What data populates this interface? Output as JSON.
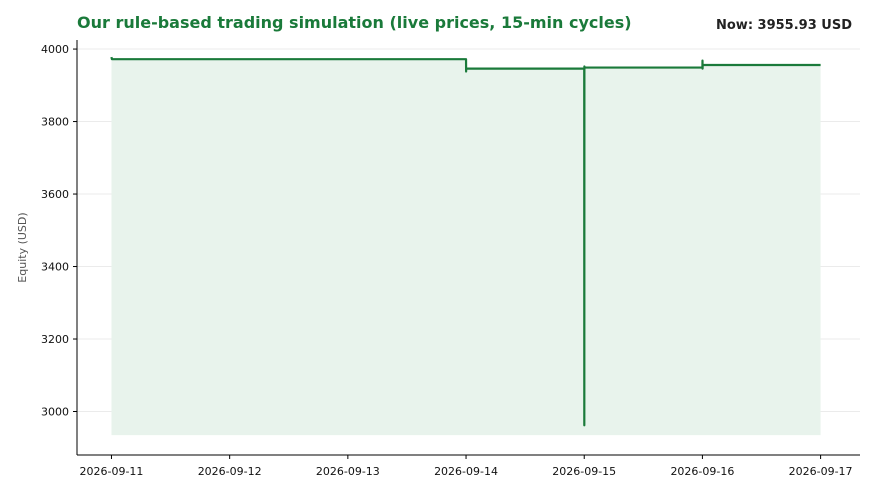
{
  "chart_data": {
    "type": "line",
    "title": "Our rule-based trading simulation (live prices, 15-min cycles)",
    "annotation": "Now: 3955.93 USD",
    "xlabel": "",
    "ylabel": "Equity (USD)",
    "ylim": [
      2880,
      4025
    ],
    "yticks": [
      3000,
      3200,
      3400,
      3600,
      3800,
      4000
    ],
    "x_tick_labels": [
      "2026-09-11",
      "2026-09-12",
      "2026-09-13",
      "2026-09-14",
      "2026-09-15",
      "2026-09-16",
      "2026-09-17"
    ],
    "xlim": [
      "2026-09-10 17:00",
      "2026-09-17 08:00"
    ],
    "grid": "horizontal",
    "fill_baseline": 2935,
    "colors": {
      "line": "#1a7a3a",
      "fill": "#e8f3ec",
      "grid": "#ebebeb",
      "axis": "#000000"
    },
    "series": [
      {
        "name": "",
        "points": [
          [
            "2026-09-11 00:00",
            3978
          ],
          [
            "2026-09-11 00:05",
            3972
          ],
          [
            "2026-09-14 00:00",
            3972
          ],
          [
            "2026-09-14 00:01",
            3938
          ],
          [
            "2026-09-14 00:02",
            3946
          ],
          [
            "2026-09-15 00:00",
            3946
          ],
          [
            "2026-09-15 00:01",
            2962
          ],
          [
            "2026-09-15 00:02",
            3952
          ],
          [
            "2026-09-15 00:03",
            3949
          ],
          [
            "2026-09-16 00:00",
            3949
          ],
          [
            "2026-09-16 00:01",
            3968
          ],
          [
            "2026-09-16 00:02",
            3946
          ],
          [
            "2026-09-16 00:03",
            3956
          ],
          [
            "2026-09-17 00:00",
            3955.93
          ]
        ]
      }
    ]
  }
}
